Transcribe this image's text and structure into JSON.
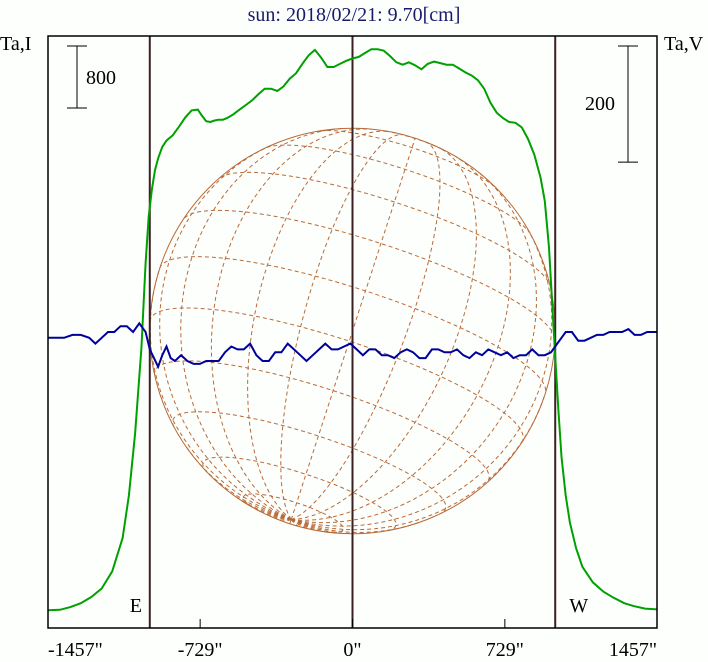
{
  "chart_data": {
    "type": "line",
    "title": "sun: 2018/02/21: 9.70[cm]",
    "ylabel_left": "Ta,I",
    "ylabel_right": "Ta,V",
    "xlim": [
      -1457,
      1457
    ],
    "x_ticks": [
      {
        "value": -1457,
        "label": "-1457\""
      },
      {
        "value": -729,
        "label": "-729\""
      },
      {
        "value": 0,
        "label": "0\""
      },
      {
        "value": 729,
        "label": "729\""
      },
      {
        "value": 1457,
        "label": "1457\""
      }
    ],
    "scale_bar_left": {
      "label": "800",
      "value": 800
    },
    "scale_bar_right": {
      "label": "200",
      "value": 200
    },
    "limb_markers": [
      {
        "value": -970,
        "label": "E"
      },
      {
        "value": 970,
        "label": "W"
      }
    ],
    "center_marker": {
      "value": 0
    },
    "ylim_I": [
      -210,
      7430
    ],
    "ylim_V": [
      -500,
      520
    ],
    "colors": {
      "I": "#00a000",
      "V": "#00009c",
      "limb": "#3a2020",
      "globe": "#b86a38",
      "axis": "#000000"
    },
    "series": [
      {
        "name": "I",
        "x": [
          -1457,
          -1400,
          -1350,
          -1300,
          -1250,
          -1200,
          -1150,
          -1100,
          -1070,
          -1040,
          -1010,
          -990,
          -975,
          -960,
          -945,
          -930,
          -910,
          -890,
          -860,
          -830,
          -800,
          -770,
          -740,
          -720,
          -700,
          -680,
          -660,
          -640,
          -620,
          -600,
          -570,
          -540,
          -510,
          -480,
          -450,
          -420,
          -390,
          -360,
          -330,
          -300,
          -270,
          -240,
          -210,
          -180,
          -150,
          -120,
          -90,
          -60,
          -30,
          0,
          30,
          60,
          90,
          120,
          150,
          180,
          210,
          240,
          270,
          300,
          330,
          360,
          390,
          420,
          450,
          480,
          510,
          540,
          570,
          600,
          630,
          660,
          690,
          720,
          750,
          780,
          810,
          840,
          870,
          900,
          920,
          940,
          955,
          970,
          985,
          1000,
          1020,
          1040,
          1070,
          1100,
          1150,
          1200,
          1250,
          1300,
          1350,
          1400,
          1457
        ],
        "values": [
          20,
          25,
          60,
          110,
          190,
          300,
          520,
          950,
          1500,
          2300,
          3400,
          4500,
          5100,
          5450,
          5700,
          5850,
          6000,
          6080,
          6150,
          6260,
          6380,
          6470,
          6480,
          6400,
          6330,
          6320,
          6340,
          6350,
          6350,
          6370,
          6420,
          6480,
          6540,
          6600,
          6680,
          6750,
          6750,
          6720,
          6780,
          6880,
          6950,
          7070,
          7180,
          7250,
          7150,
          7030,
          7030,
          7070,
          7110,
          7140,
          7160,
          7210,
          7260,
          7260,
          7240,
          7170,
          7090,
          7060,
          7090,
          7050,
          7000,
          7070,
          7100,
          7080,
          7060,
          7060,
          7010,
          6960,
          6920,
          6860,
          6750,
          6570,
          6440,
          6370,
          6320,
          6310,
          6250,
          6100,
          5900,
          5600,
          5300,
          4700,
          4000,
          3300,
          2600,
          2000,
          1500,
          1150,
          820,
          580,
          380,
          260,
          180,
          110,
          70,
          40,
          30
        ]
      },
      {
        "name": "V",
        "x": [
          -1457,
          -1420,
          -1380,
          -1340,
          -1300,
          -1260,
          -1230,
          -1200,
          -1170,
          -1140,
          -1110,
          -1080,
          -1050,
          -1020,
          -990,
          -970,
          -950,
          -930,
          -910,
          -890,
          -870,
          -850,
          -820,
          -790,
          -760,
          -730,
          -700,
          -670,
          -640,
          -610,
          -580,
          -550,
          -520,
          -490,
          -460,
          -430,
          -400,
          -370,
          -340,
          -310,
          -280,
          -250,
          -220,
          -190,
          -160,
          -130,
          -100,
          -70,
          -40,
          -10,
          20,
          50,
          80,
          110,
          140,
          170,
          200,
          230,
          260,
          290,
          320,
          350,
          380,
          410,
          440,
          470,
          500,
          530,
          560,
          590,
          620,
          650,
          680,
          710,
          740,
          770,
          800,
          830,
          860,
          890,
          920,
          950,
          970,
          990,
          1020,
          1050,
          1080,
          1110,
          1140,
          1170,
          1200,
          1230,
          1260,
          1290,
          1320,
          1350,
          1380,
          1410,
          1457
        ],
        "values": [
          0,
          0,
          0,
          5,
          5,
          0,
          -10,
          0,
          10,
          10,
          20,
          20,
          10,
          25,
          10,
          -20,
          -35,
          -50,
          -30,
          -15,
          -35,
          -40,
          -30,
          -40,
          -45,
          -45,
          -40,
          -40,
          -40,
          -25,
          -15,
          -20,
          -20,
          -10,
          -30,
          -40,
          -40,
          -25,
          -25,
          -10,
          -20,
          -30,
          -40,
          -30,
          -20,
          -10,
          -20,
          -20,
          -15,
          -10,
          -20,
          -30,
          -20,
          -20,
          -30,
          -30,
          -35,
          -25,
          -20,
          -25,
          -35,
          -35,
          -20,
          -20,
          -25,
          -25,
          -20,
          -30,
          -35,
          -25,
          -30,
          -20,
          -25,
          -30,
          -25,
          -35,
          -30,
          -30,
          -20,
          -30,
          -30,
          -25,
          -15,
          -5,
          10,
          10,
          -5,
          -5,
          0,
          5,
          5,
          10,
          10,
          10,
          15,
          5,
          5,
          10,
          10
        ]
      }
    ]
  }
}
